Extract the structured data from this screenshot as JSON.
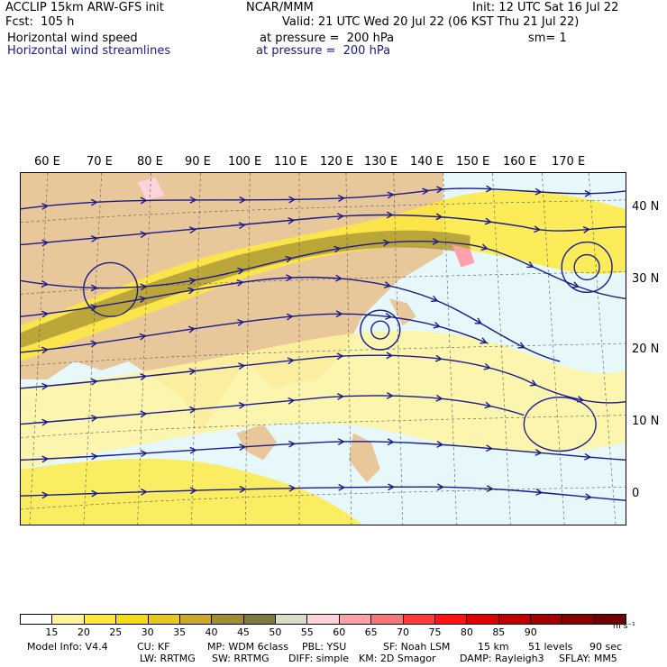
{
  "header": {
    "model_title": "ACCLIP 15km ARW-GFS init",
    "org": "NCAR/MMM",
    "init": "Init: 12 UTC Sat 16 Jul 22",
    "fcst": "Fcst:  105 h",
    "valid": "Valid: 21 UTC Wed 20 Jul 22 (06 KST Thu 21 Jul 22)",
    "field1": "Horizontal wind speed",
    "field1_level": "at pressure =  200 hPa",
    "smooth": "sm= 1",
    "field2": "Horizontal wind streamlines",
    "field2_level": "at pressure =  200 hPa"
  },
  "longitudes": [
    "60 E",
    "70 E",
    "80 E",
    "90 E",
    "100 E",
    "110 E",
    "120 E",
    "130 E",
    "140 E",
    "150 E",
    "160 E",
    "170 E"
  ],
  "latitudes": [
    "40 N",
    "30 N",
    "20 N",
    "10 N",
    "0"
  ],
  "colorbar": {
    "labels": [
      "15",
      "20",
      "25",
      "30",
      "35",
      "40",
      "45",
      "50",
      "55",
      "60",
      "65",
      "70",
      "75",
      "80",
      "85",
      "90"
    ],
    "units": "m s⁻¹",
    "colors": [
      "#ffffff",
      "#fff5a0",
      "#ffea3c",
      "#f5dc14",
      "#e8c81e",
      "#c8aa28",
      "#a08c32",
      "#7d7a3c",
      "#dcdcc8",
      "#ffd2dc",
      "#ffa0aa",
      "#f57878",
      "#ff3c3c",
      "#ff1414",
      "#e10000",
      "#be0000",
      "#a00000",
      "#870000",
      "#6e0000"
    ]
  },
  "footer": {
    "line1": [
      "Model Info: V4.4",
      "CU: KF",
      "MP: WDM 6class",
      "PBL: YSU",
      "SF: Noah LSM",
      "15 km",
      "51 levels",
      "90 sec"
    ],
    "line2": [
      "LW: RRTMG",
      "SW: RRTMG",
      "DIFF: simple",
      "KM: 2D Smagor",
      "DAMP: Rayleigh3",
      "SFLAY: MM5"
    ]
  }
}
